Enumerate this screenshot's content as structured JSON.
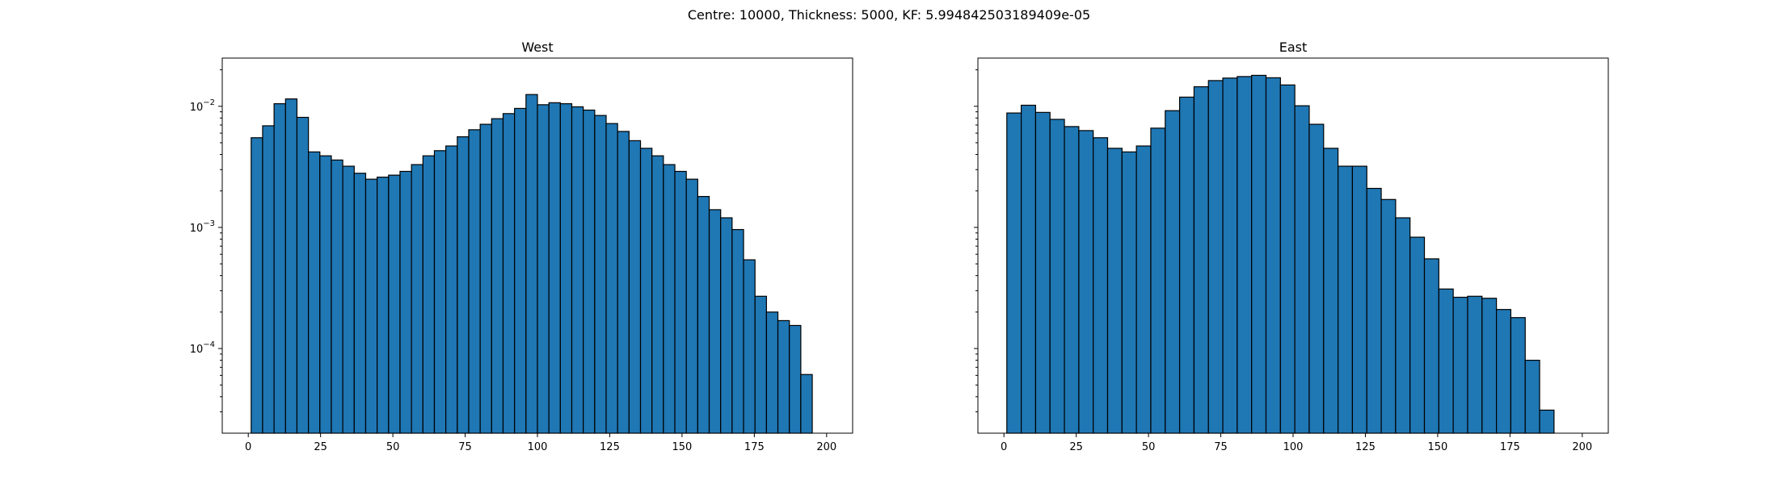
{
  "figure": {
    "suptitle": "Centre: 10000, Thickness: 5000, KF: 5.994842503189409e-05"
  },
  "chart_data": [
    {
      "type": "bar",
      "title": "West",
      "xlabel": "",
      "ylabel": "",
      "yscale": "log",
      "xlim": [
        -9,
        209
      ],
      "ylim": [
        2e-05,
        0.025
      ],
      "xticks": [
        0,
        25,
        50,
        75,
        100,
        125,
        150,
        175,
        200
      ],
      "yticks": [
        {
          "value": 0.0001,
          "base": "10",
          "exp": "−4"
        },
        {
          "value": 0.001,
          "base": "10",
          "exp": "−3"
        },
        {
          "value": 0.01,
          "base": "10",
          "exp": "−2"
        }
      ],
      "bin_start": 1,
      "bin_width": 3.96,
      "color": "#1f77b4",
      "edgecolor": "#000000",
      "values": [
        0.0055,
        0.0069,
        0.0105,
        0.0115,
        0.0081,
        0.0042,
        0.0039,
        0.0036,
        0.0032,
        0.0028,
        0.0025,
        0.0026,
        0.0027,
        0.0029,
        0.0033,
        0.0039,
        0.0043,
        0.0047,
        0.0056,
        0.0064,
        0.0071,
        0.0079,
        0.0087,
        0.0096,
        0.0125,
        0.0103,
        0.0107,
        0.0105,
        0.0099,
        0.0093,
        0.0084,
        0.0072,
        0.0062,
        0.0052,
        0.0045,
        0.0039,
        0.0033,
        0.0029,
        0.0025,
        0.0018,
        0.0014,
        0.0012,
        0.00096,
        0.00054,
        0.00027,
        0.0002,
        0.00017,
        0.000155,
        6.1e-05
      ]
    },
    {
      "type": "bar",
      "title": "East",
      "xlabel": "",
      "ylabel": "",
      "yscale": "log",
      "xlim": [
        -9,
        209
      ],
      "ylim": [
        2e-05,
        0.025
      ],
      "xticks": [
        0,
        25,
        50,
        75,
        100,
        125,
        150,
        175,
        200
      ],
      "yticks": [
        {
          "value": 0.0001,
          "base": "",
          "exp": ""
        },
        {
          "value": 0.001,
          "base": "",
          "exp": ""
        },
        {
          "value": 0.01,
          "base": "",
          "exp": ""
        }
      ],
      "bin_start": 1,
      "bin_width": 4.98,
      "color": "#1f77b4",
      "edgecolor": "#000000",
      "values": [
        0.0088,
        0.0102,
        0.0089,
        0.0078,
        0.0068,
        0.0063,
        0.0055,
        0.0045,
        0.0042,
        0.0047,
        0.0066,
        0.0092,
        0.0119,
        0.0145,
        0.0163,
        0.0171,
        0.0176,
        0.018,
        0.0172,
        0.015,
        0.0101,
        0.0071,
        0.0045,
        0.0032,
        0.0032,
        0.0021,
        0.0017,
        0.0012,
        0.00083,
        0.00055,
        0.00031,
        0.000265,
        0.00027,
        0.00026,
        0.00021,
        0.00018,
        8e-05,
        3.1e-05
      ]
    }
  ]
}
